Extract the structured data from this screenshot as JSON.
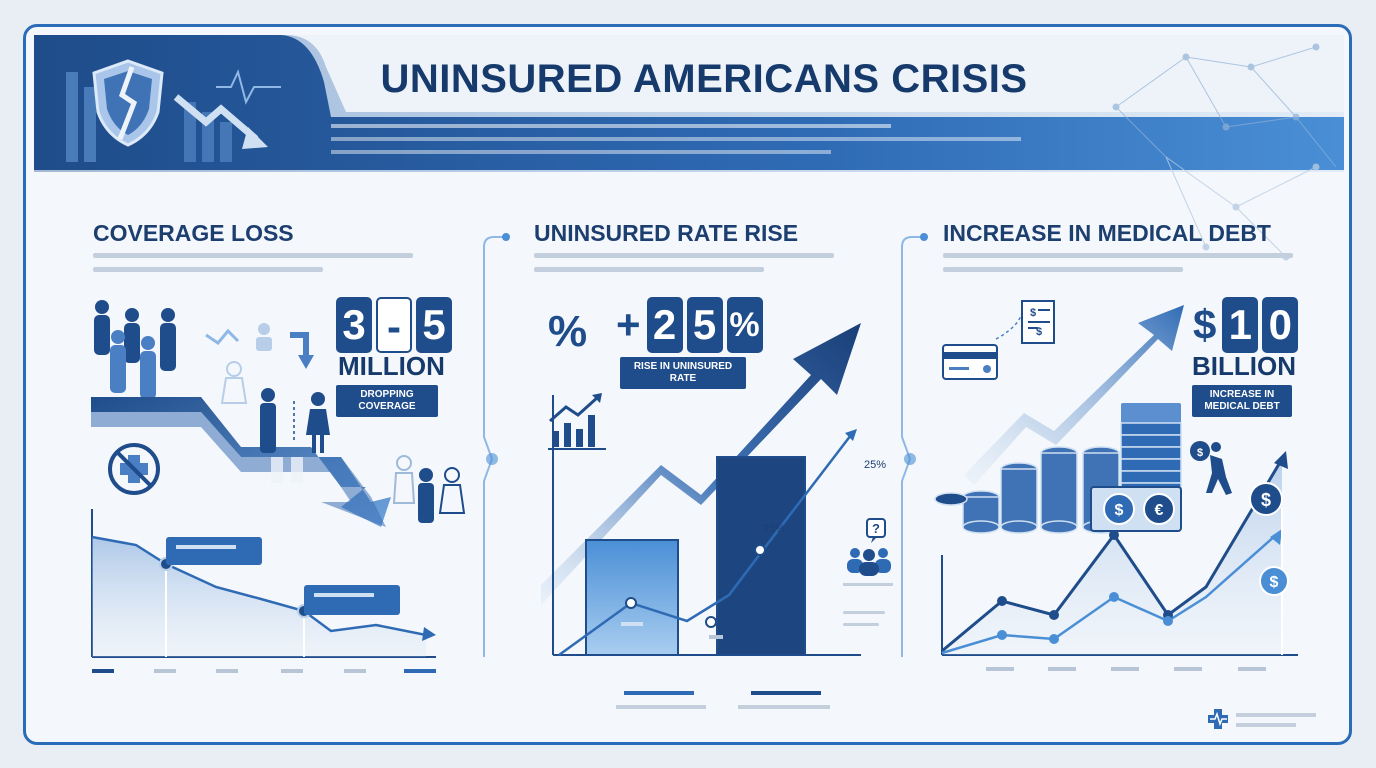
{
  "title": "UNINSURED AMERICANS CRISIS",
  "colors": {
    "accent": "#1f4c8a",
    "light_accent": "#4a8fd6",
    "frame": "#2b6cb8",
    "text": "#163a6b"
  },
  "panels": [
    {
      "heading": "COVERAGE LOSS",
      "digits": [
        "3",
        "-",
        "5"
      ],
      "unit": "MILLION",
      "tag": "DROPPING COVERAGE",
      "icons": [
        "people-crowd-icon",
        "no-healthcare-cross-icon",
        "down-arrow-icon"
      ]
    },
    {
      "heading": "UNINSURED RATE RISE",
      "percent_symbol": "%",
      "digits": [
        "+",
        "2",
        "5",
        "%"
      ],
      "tag": "RISE IN UNINSURED RATE",
      "bar_label": "25%",
      "line_label": "25%",
      "icons": [
        "trend-up-icon",
        "question-group-icon"
      ]
    },
    {
      "heading": "INCREASE IN MEDICAL DEBT",
      "digits": [
        "$",
        "1",
        "0"
      ],
      "unit": "BILLION",
      "tag": "INCREASE IN MEDICAL DEBT",
      "icons": [
        "credit-card-icon",
        "invoice-icon",
        "coins-stack-icon",
        "person-carrying-debt-icon",
        "dollar-badge-icon"
      ]
    }
  ],
  "footer_icon": "healthcare-logo-icon"
}
